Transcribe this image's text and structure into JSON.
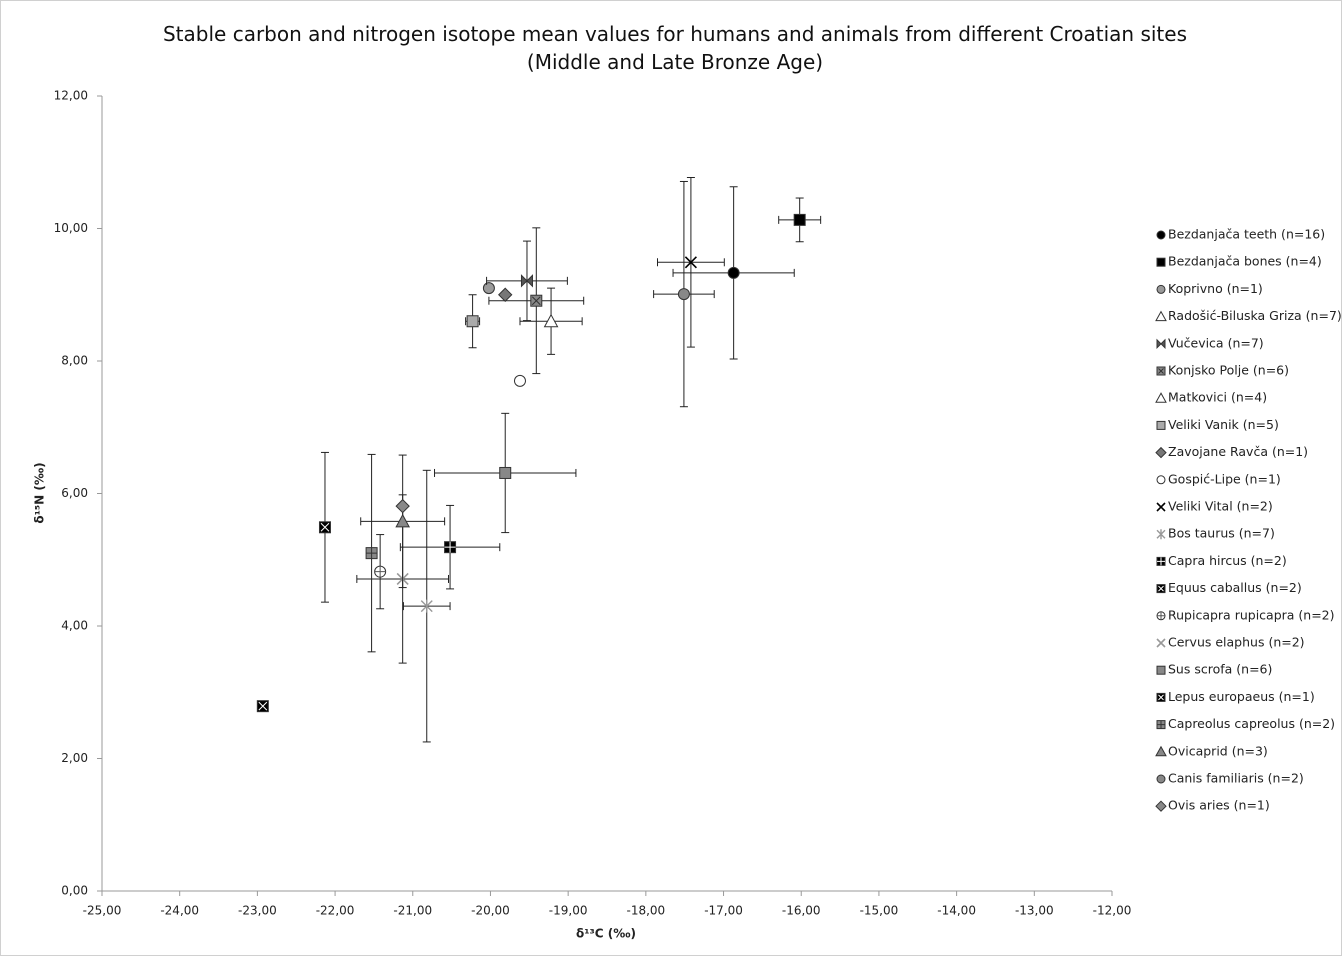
{
  "chart_data": {
    "type": "scatter",
    "title": "Stable carbon and nitrogen isotope mean values for humans and animals from different Croatian sites (Middle and Late Bronze Age)",
    "x_label": "δ¹³C (‰)",
    "y_label": "δ¹⁵N (‰)",
    "xlim": [
      -25,
      -12
    ],
    "xticks": [
      {
        "value": -25,
        "label": "-25,00"
      },
      {
        "value": -24,
        "label": "-24,00"
      },
      {
        "value": -23,
        "label": "-23,00"
      },
      {
        "value": -22,
        "label": "-22,00"
      },
      {
        "value": -21,
        "label": "-21,00"
      },
      {
        "value": -20,
        "label": "-20,00"
      },
      {
        "value": -19,
        "label": "-19,00"
      },
      {
        "value": -18,
        "label": "-18,00"
      },
      {
        "value": -17,
        "label": "-17,00"
      },
      {
        "value": -16,
        "label": "-16,00"
      },
      {
        "value": -15,
        "label": "-15,00"
      },
      {
        "value": -14,
        "label": "-14,00"
      },
      {
        "value": -13,
        "label": "-13,00"
      },
      {
        "value": -12,
        "label": "-12,00"
      }
    ],
    "ylim": [
      0,
      12
    ],
    "yticks": [
      {
        "value": 0,
        "label": "0,00"
      },
      {
        "value": 2,
        "label": "2,00"
      },
      {
        "value": 4,
        "label": "4,00"
      },
      {
        "value": 6,
        "label": "6,00"
      },
      {
        "value": 8,
        "label": "8,00"
      },
      {
        "value": 10,
        "label": "10,00"
      },
      {
        "value": 12,
        "label": "12,00"
      }
    ],
    "legend": "right",
    "series": [
      {
        "name": "Bezdanjača teeth (n=16)",
        "marker": "circle",
        "color": "#000000",
        "x": [
          -16.87
        ],
        "y": [
          9.33
        ],
        "xerr": [
          0.78
        ],
        "yerr": [
          1.3
        ]
      },
      {
        "name": "Bezdanjača bones (n=4)",
        "marker": "square",
        "color": "#000000",
        "x": [
          -16.02
        ],
        "y": [
          10.13
        ],
        "xerr": [
          0.27
        ],
        "yerr": [
          0.33
        ]
      },
      {
        "name": "Koprivno (n=1)",
        "marker": "circle",
        "color": "#9a9a9a",
        "x": [
          -20.02
        ],
        "y": [
          9.1
        ],
        "xerr": [
          null
        ],
        "yerr": [
          null
        ]
      },
      {
        "name": "Radošić-Biluska Griza (n=7)",
        "marker": "triangle",
        "color": "#ffffff",
        "x": [
          -19.22
        ],
        "y": [
          8.6
        ],
        "xerr": [
          0.4
        ],
        "yerr": [
          0.5
        ]
      },
      {
        "name": "Vučevica (n=7)",
        "marker": "bowtie",
        "color": "#555555",
        "x": [
          -19.53
        ],
        "y": [
          9.21
        ],
        "xerr": [
          0.52
        ],
        "yerr": [
          0.6
        ]
      },
      {
        "name": "Konjsko Polje (n=6)",
        "marker": "xsquare",
        "color": "#888888",
        "x": [
          -19.41
        ],
        "y": [
          8.91
        ],
        "xerr": [
          0.61
        ],
        "yerr": [
          1.1
        ]
      },
      {
        "name": "Matkovici (n=4)",
        "marker": "triangle",
        "color": "#ffffff",
        "x": [],
        "y": [],
        "xerr": [],
        "yerr": []
      },
      {
        "name": "Veliki Vanik (n=5)",
        "marker": "square",
        "color": "#aaaaaa",
        "x": [
          -20.23
        ],
        "y": [
          8.6
        ],
        "xerr": [
          0.09
        ],
        "yerr": [
          0.4
        ]
      },
      {
        "name": "Zavojane Ravča (n=1)",
        "marker": "diamond",
        "color": "#777777",
        "x": [
          -19.81
        ],
        "y": [
          9.0
        ],
        "xerr": [
          null
        ],
        "yerr": [
          null
        ]
      },
      {
        "name": "Gospić-Lipe (n=1)",
        "marker": "circle",
        "color": "#ffffff",
        "x": [
          -19.62
        ],
        "y": [
          7.7
        ],
        "xerr": [
          null
        ],
        "yerr": [
          null
        ]
      },
      {
        "name": "Veliki Vital (n=2)",
        "marker": "x",
        "color": "#000000",
        "x": [
          -17.42
        ],
        "y": [
          9.49
        ],
        "xerr": [
          0.43
        ],
        "yerr": [
          1.28
        ]
      },
      {
        "name": "Bos taurus (n=7)",
        "marker": "asterisk",
        "color": "#999999",
        "x": [
          -20.82
        ],
        "y": [
          4.3
        ],
        "xerr": [
          0.3
        ],
        "yerr": [
          2.05
        ]
      },
      {
        "name": "Capra hircus (n=2)",
        "marker": "plussquare",
        "color": "#000000",
        "x": [
          -20.52
        ],
        "y": [
          5.19
        ],
        "xerr": [
          0.64
        ],
        "yerr": [
          0.63
        ]
      },
      {
        "name": "Equus caballus (n=2)",
        "marker": "xsquare",
        "color": "#000000",
        "x": [
          -22.13
        ],
        "y": [
          5.49
        ],
        "xerr": [
          null
        ],
        "yerr": [
          1.13
        ]
      },
      {
        "name": "Rupicapra rupicapra (n=2)",
        "marker": "hatchcircle",
        "color": "#ffffff",
        "x": [
          -21.42
        ],
        "y": [
          4.82
        ],
        "xerr": [
          null
        ],
        "yerr": [
          0.56
        ]
      },
      {
        "name": "Cervus elaphus (n=2)",
        "marker": "x",
        "color": "#999999",
        "x": [
          -21.13
        ],
        "y": [
          4.71
        ],
        "xerr": [
          0.59
        ],
        "yerr": [
          1.27
        ]
      },
      {
        "name": "Sus scrofa (n=6)",
        "marker": "square",
        "color": "#888888",
        "x": [
          -19.81
        ],
        "y": [
          6.31
        ],
        "xerr": [
          0.91
        ],
        "yerr": [
          0.9
        ]
      },
      {
        "name": "Lepus europaeus (n=1)",
        "marker": "xsquare",
        "color": "#000000",
        "x": [
          -22.93
        ],
        "y": [
          2.79
        ],
        "xerr": [
          null
        ],
        "yerr": [
          null
        ]
      },
      {
        "name": "Capreolus capreolus (n=2)",
        "marker": "plussquare",
        "color": "#888888",
        "x": [
          -21.53
        ],
        "y": [
          5.1
        ],
        "xerr": [
          null
        ],
        "yerr": [
          1.49
        ]
      },
      {
        "name": "Ovicaprid (n=3)",
        "marker": "triangle",
        "color": "#888888",
        "x": [
          -21.13
        ],
        "y": [
          5.58
        ],
        "xerr": [
          0.54
        ],
        "yerr": [
          1.0
        ]
      },
      {
        "name": "Canis familiaris (n=2)",
        "marker": "circle",
        "color": "#888888",
        "x": [
          -17.51
        ],
        "y": [
          9.01
        ],
        "xerr": [
          0.39
        ],
        "yerr": [
          1.7
        ]
      },
      {
        "name": "Ovis aries (n=1)",
        "marker": "diamond",
        "color": "#888888",
        "x": [
          -21.13
        ],
        "y": [
          5.81
        ],
        "xerr": [
          null
        ],
        "yerr": [
          null
        ]
      }
    ]
  }
}
